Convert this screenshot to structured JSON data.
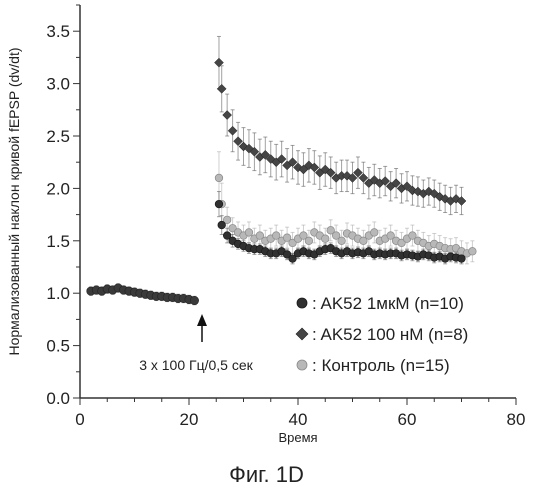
{
  "caption": "Фиг. 1D",
  "chart_data": {
    "type": "scatter",
    "xlabel": "Время",
    "ylabel": "Нормализованный наклон кривой fEPSP (dv/dt)",
    "xlim": [
      0,
      80
    ],
    "ylim": [
      0,
      3.75
    ],
    "xticks": [
      "0",
      "20",
      "40",
      "60",
      "80"
    ],
    "yticks": [
      "0.0",
      "0.5",
      "1.0",
      "1.5",
      "2.0",
      "2.5",
      "3.0",
      "3.5"
    ],
    "grid": false,
    "legend_position": "bottom-right",
    "annotation": {
      "text": "3 x 100 Гц/0,5 сек",
      "x": 22,
      "y": 0.85
    },
    "baseline": {
      "x": [
        2,
        3,
        4,
        5,
        6,
        7,
        8,
        9,
        10,
        11,
        12,
        13,
        14,
        15,
        16,
        17,
        18,
        19,
        20,
        21
      ],
      "y": [
        1.02,
        1.03,
        1.02,
        1.04,
        1.03,
        1.05,
        1.03,
        1.02,
        1.01,
        1.0,
        0.99,
        0.98,
        0.97,
        0.97,
        0.96,
        0.96,
        0.95,
        0.95,
        0.94,
        0.93
      ],
      "err": 0.04
    },
    "series": [
      {
        "name": "AK52 1мкМ (n=10)",
        "color": "#303030",
        "x": [
          25.5,
          26,
          27,
          28,
          29,
          30,
          31,
          32,
          33,
          34,
          35,
          36,
          37,
          38,
          39,
          40,
          41,
          42,
          43,
          44,
          45,
          46,
          47,
          48,
          49,
          50,
          51,
          52,
          53,
          54,
          55,
          56,
          57,
          58,
          59,
          60,
          61,
          62,
          63,
          64,
          65,
          66,
          67,
          68,
          69,
          70
        ],
        "y": [
          1.85,
          1.65,
          1.55,
          1.5,
          1.47,
          1.45,
          1.43,
          1.42,
          1.42,
          1.4,
          1.38,
          1.38,
          1.4,
          1.37,
          1.33,
          1.38,
          1.4,
          1.38,
          1.37,
          1.4,
          1.42,
          1.43,
          1.4,
          1.38,
          1.4,
          1.38,
          1.39,
          1.38,
          1.4,
          1.37,
          1.38,
          1.37,
          1.38,
          1.38,
          1.36,
          1.37,
          1.36,
          1.35,
          1.37,
          1.36,
          1.34,
          1.35,
          1.33,
          1.35,
          1.34,
          1.33
        ],
        "err": [
          0.12,
          0.09,
          0.07,
          0.06,
          0.05,
          0.05,
          0.05,
          0.05,
          0.05,
          0.05,
          0.05,
          0.05,
          0.05,
          0.05,
          0.05,
          0.05,
          0.05,
          0.05,
          0.05,
          0.05,
          0.05,
          0.05,
          0.05,
          0.05,
          0.05,
          0.05,
          0.05,
          0.05,
          0.05,
          0.05,
          0.05,
          0.05,
          0.05,
          0.05,
          0.05,
          0.05,
          0.05,
          0.05,
          0.05,
          0.05,
          0.05,
          0.05,
          0.05,
          0.05,
          0.05,
          0.05
        ]
      },
      {
        "name": "AK52 100 нМ (n=8)",
        "color": "#454545",
        "x": [
          25.5,
          26,
          27,
          28,
          29,
          30,
          31,
          32,
          33,
          34,
          35,
          36,
          37,
          38,
          39,
          40,
          41,
          42,
          43,
          44,
          45,
          46,
          47,
          48,
          49,
          50,
          51,
          52,
          53,
          54,
          55,
          56,
          57,
          58,
          59,
          60,
          61,
          62,
          63,
          64,
          65,
          66,
          67,
          68,
          69,
          70
        ],
        "y": [
          3.2,
          2.95,
          2.7,
          2.55,
          2.45,
          2.4,
          2.38,
          2.35,
          2.3,
          2.32,
          2.28,
          2.25,
          2.28,
          2.22,
          2.25,
          2.2,
          2.18,
          2.22,
          2.2,
          2.15,
          2.18,
          2.15,
          2.1,
          2.12,
          2.12,
          2.1,
          2.15,
          2.1,
          2.05,
          2.08,
          2.05,
          2.07,
          2.02,
          2.05,
          2.0,
          2.02,
          1.98,
          1.97,
          1.95,
          1.97,
          1.95,
          1.92,
          1.9,
          1.88,
          1.9,
          1.88
        ],
        "err": [
          0.25,
          0.22,
          0.2,
          0.2,
          0.18,
          0.18,
          0.18,
          0.18,
          0.17,
          0.17,
          0.17,
          0.17,
          0.17,
          0.16,
          0.16,
          0.16,
          0.16,
          0.16,
          0.16,
          0.16,
          0.16,
          0.15,
          0.15,
          0.15,
          0.15,
          0.15,
          0.15,
          0.15,
          0.15,
          0.15,
          0.14,
          0.14,
          0.14,
          0.14,
          0.14,
          0.14,
          0.14,
          0.14,
          0.13,
          0.13,
          0.13,
          0.13,
          0.13,
          0.13,
          0.13,
          0.13
        ]
      },
      {
        "name": "Контроль (n=15)",
        "color": "#b8b8b8",
        "x": [
          25.5,
          26,
          27,
          28,
          29,
          30,
          31,
          32,
          33,
          34,
          35,
          36,
          37,
          38,
          39,
          40,
          41,
          42,
          43,
          44,
          45,
          46,
          47,
          48,
          49,
          50,
          51,
          52,
          53,
          54,
          55,
          56,
          57,
          58,
          59,
          60,
          61,
          62,
          63,
          64,
          65,
          66,
          67,
          68,
          69,
          70,
          71,
          72
        ],
        "y": [
          2.1,
          1.85,
          1.7,
          1.62,
          1.58,
          1.55,
          1.58,
          1.52,
          1.55,
          1.5,
          1.52,
          1.55,
          1.5,
          1.53,
          1.48,
          1.52,
          1.55,
          1.5,
          1.58,
          1.55,
          1.52,
          1.6,
          1.55,
          1.5,
          1.57,
          1.55,
          1.52,
          1.5,
          1.55,
          1.58,
          1.5,
          1.52,
          1.55,
          1.5,
          1.48,
          1.52,
          1.55,
          1.5,
          1.48,
          1.45,
          1.47,
          1.45,
          1.43,
          1.42,
          1.43,
          1.4,
          1.38,
          1.4
        ],
        "err": [
          0.25,
          0.2,
          0.12,
          0.1,
          0.1,
          0.1,
          0.1,
          0.1,
          0.1,
          0.1,
          0.1,
          0.1,
          0.1,
          0.1,
          0.1,
          0.1,
          0.1,
          0.1,
          0.1,
          0.1,
          0.1,
          0.1,
          0.1,
          0.1,
          0.1,
          0.1,
          0.1,
          0.1,
          0.1,
          0.1,
          0.1,
          0.1,
          0.1,
          0.1,
          0.1,
          0.1,
          0.1,
          0.1,
          0.1,
          0.1,
          0.1,
          0.1,
          0.1,
          0.1,
          0.1,
          0.1,
          0.1,
          0.1
        ]
      }
    ]
  }
}
